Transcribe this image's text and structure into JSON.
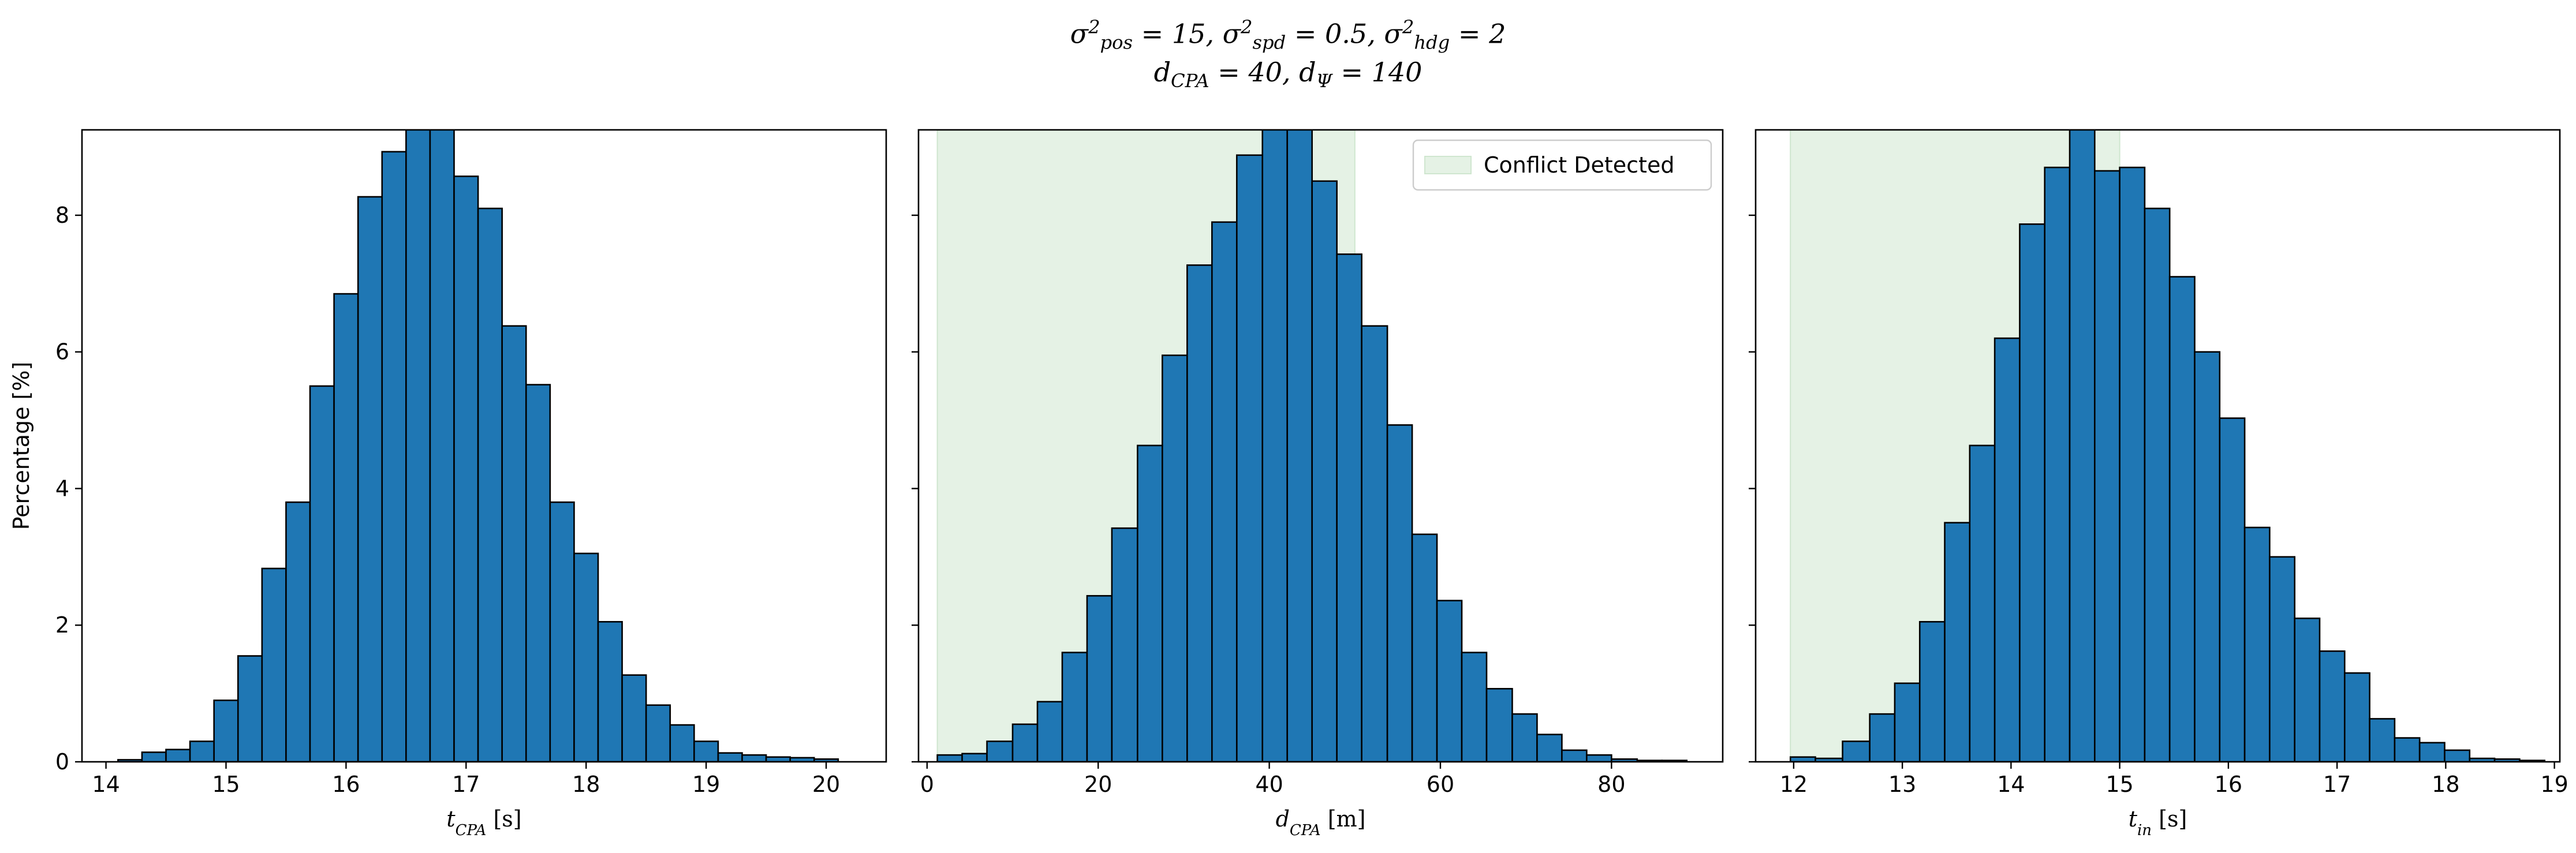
{
  "figure": {
    "title_line1_html": "σ<sup>2</sup><sub>pos</sub> = 15, σ<sup>2</sup><sub>spd</sub> = 0.5, σ<sup>2</sup><sub>hdg</sub> = 2",
    "title_line2_html": "d<sub>CPA</sub> = 40, d<sub>Ψ</sub> = 140"
  },
  "chart_data": [
    {
      "type": "bar",
      "xlabel_html": "t<tspan baseline-shift=\"sub\" font-size=\"26\">CPA</tspan><tspan font-style=\"normal\"> [s]</tspan>",
      "ylabel": "Percentage [%]",
      "xlim": [
        13.8,
        20.5
      ],
      "ylim": [
        0,
        9.25
      ],
      "xticks": [
        14,
        15,
        16,
        17,
        18,
        19,
        20
      ],
      "yticks": [
        0,
        2,
        4,
        6,
        8
      ],
      "bar_color": "#1f77b4",
      "bins": [
        [
          14.1,
          14.3,
          0.03
        ],
        [
          14.3,
          14.5,
          0.14
        ],
        [
          14.5,
          14.7,
          0.18
        ],
        [
          14.7,
          14.9,
          0.3
        ],
        [
          14.9,
          15.1,
          0.9
        ],
        [
          15.1,
          15.3,
          1.55
        ],
        [
          15.3,
          15.5,
          2.83
        ],
        [
          15.5,
          15.7,
          3.8
        ],
        [
          15.7,
          15.9,
          5.5
        ],
        [
          15.9,
          16.1,
          6.85
        ],
        [
          16.1,
          16.3,
          8.27
        ],
        [
          16.3,
          16.5,
          8.93
        ],
        [
          16.5,
          16.7,
          9.3
        ],
        [
          16.7,
          16.9,
          9.3
        ],
        [
          16.9,
          17.1,
          8.57
        ],
        [
          17.1,
          17.3,
          8.1
        ],
        [
          17.3,
          17.5,
          6.38
        ],
        [
          17.5,
          17.7,
          5.52
        ],
        [
          17.7,
          17.9,
          3.8
        ],
        [
          17.9,
          18.1,
          3.05
        ],
        [
          18.1,
          18.3,
          2.05
        ],
        [
          18.3,
          18.5,
          1.27
        ],
        [
          18.5,
          18.7,
          0.83
        ],
        [
          18.7,
          18.9,
          0.54
        ],
        [
          18.9,
          19.1,
          0.3
        ],
        [
          19.1,
          19.3,
          0.13
        ],
        [
          19.3,
          19.5,
          0.1
        ],
        [
          19.5,
          19.7,
          0.07
        ],
        [
          19.7,
          19.9,
          0.06
        ],
        [
          19.9,
          20.1,
          0.04
        ]
      ]
    },
    {
      "type": "bar",
      "xlabel_html": "d<tspan baseline-shift=\"sub\" font-size=\"26\">CPA</tspan><tspan font-style=\"normal\"> [m]</tspan>",
      "xlim": [
        -1,
        93
      ],
      "ylim": [
        0,
        9.25
      ],
      "xticks": [
        0,
        20,
        40,
        60,
        80
      ],
      "yticks": [
        0,
        2,
        4,
        6,
        8
      ],
      "bar_color": "#1f77b4",
      "shaded_region": {
        "x0": 1.2,
        "x1": 50,
        "color": "#e5f2e5"
      },
      "legend": {
        "label": "Conflict Detected",
        "position": "top-right"
      },
      "bins": [
        [
          1.2,
          4.1,
          0.1
        ],
        [
          4.1,
          7.0,
          0.12
        ],
        [
          7.0,
          10.0,
          0.3
        ],
        [
          10.0,
          12.9,
          0.55
        ],
        [
          12.9,
          15.8,
          0.88
        ],
        [
          15.8,
          18.7,
          1.6
        ],
        [
          18.7,
          21.6,
          2.43
        ],
        [
          21.6,
          24.6,
          3.42
        ],
        [
          24.6,
          27.5,
          4.63
        ],
        [
          27.5,
          30.4,
          5.95
        ],
        [
          30.4,
          33.3,
          7.27
        ],
        [
          33.3,
          36.2,
          7.9
        ],
        [
          36.2,
          39.2,
          8.88
        ],
        [
          39.2,
          42.1,
          9.3
        ],
        [
          42.1,
          45.0,
          9.3
        ],
        [
          45.0,
          47.9,
          8.5
        ],
        [
          47.9,
          50.8,
          7.43
        ],
        [
          50.8,
          53.8,
          6.38
        ],
        [
          53.8,
          56.7,
          4.93
        ],
        [
          56.7,
          59.6,
          3.33
        ],
        [
          59.6,
          62.5,
          2.36
        ],
        [
          62.5,
          65.4,
          1.6
        ],
        [
          65.4,
          68.4,
          1.07
        ],
        [
          68.4,
          71.3,
          0.7
        ],
        [
          71.3,
          74.2,
          0.4
        ],
        [
          74.2,
          77.1,
          0.17
        ],
        [
          77.1,
          80.0,
          0.1
        ],
        [
          80.0,
          83.0,
          0.04
        ],
        [
          83.0,
          85.9,
          0.02
        ],
        [
          85.9,
          88.8,
          0.02
        ]
      ]
    },
    {
      "type": "bar",
      "xlabel_html": "t<tspan baseline-shift=\"sub\" font-size=\"26\">in</tspan><tspan font-style=\"normal\"> [s]</tspan>",
      "xlim": [
        11.65,
        19.05
      ],
      "ylim": [
        0,
        9.25
      ],
      "xticks": [
        12,
        13,
        14,
        15,
        16,
        17,
        18,
        19
      ],
      "yticks": [
        0,
        2,
        4,
        6,
        8
      ],
      "bar_color": "#1f77b4",
      "shaded_region": {
        "x0": 11.97,
        "x1": 15.0,
        "color": "#e5f2e5"
      },
      "bins": [
        [
          11.97,
          12.2,
          0.07
        ],
        [
          12.2,
          12.45,
          0.05
        ],
        [
          12.45,
          12.7,
          0.3
        ],
        [
          12.7,
          12.93,
          0.7
        ],
        [
          12.93,
          13.16,
          1.15
        ],
        [
          13.16,
          13.39,
          2.05
        ],
        [
          13.39,
          13.62,
          3.5
        ],
        [
          13.62,
          13.85,
          4.63
        ],
        [
          13.85,
          14.08,
          6.2
        ],
        [
          14.08,
          14.31,
          7.87
        ],
        [
          14.31,
          14.54,
          8.7
        ],
        [
          14.54,
          14.77,
          9.3
        ],
        [
          14.77,
          15.0,
          8.65
        ],
        [
          15.0,
          15.23,
          8.7
        ],
        [
          15.23,
          15.46,
          8.1
        ],
        [
          15.46,
          15.69,
          7.1
        ],
        [
          15.69,
          15.92,
          6.0
        ],
        [
          15.92,
          16.15,
          5.03
        ],
        [
          16.15,
          16.38,
          3.43
        ],
        [
          16.38,
          16.61,
          3.0
        ],
        [
          16.61,
          16.84,
          2.1
        ],
        [
          16.84,
          17.07,
          1.62
        ],
        [
          17.07,
          17.3,
          1.3
        ],
        [
          17.3,
          17.53,
          0.63
        ],
        [
          17.53,
          17.76,
          0.35
        ],
        [
          17.76,
          17.99,
          0.28
        ],
        [
          17.99,
          18.22,
          0.17
        ],
        [
          18.22,
          18.45,
          0.05
        ],
        [
          18.45,
          18.68,
          0.04
        ],
        [
          18.68,
          18.91,
          0.02
        ]
      ]
    }
  ]
}
